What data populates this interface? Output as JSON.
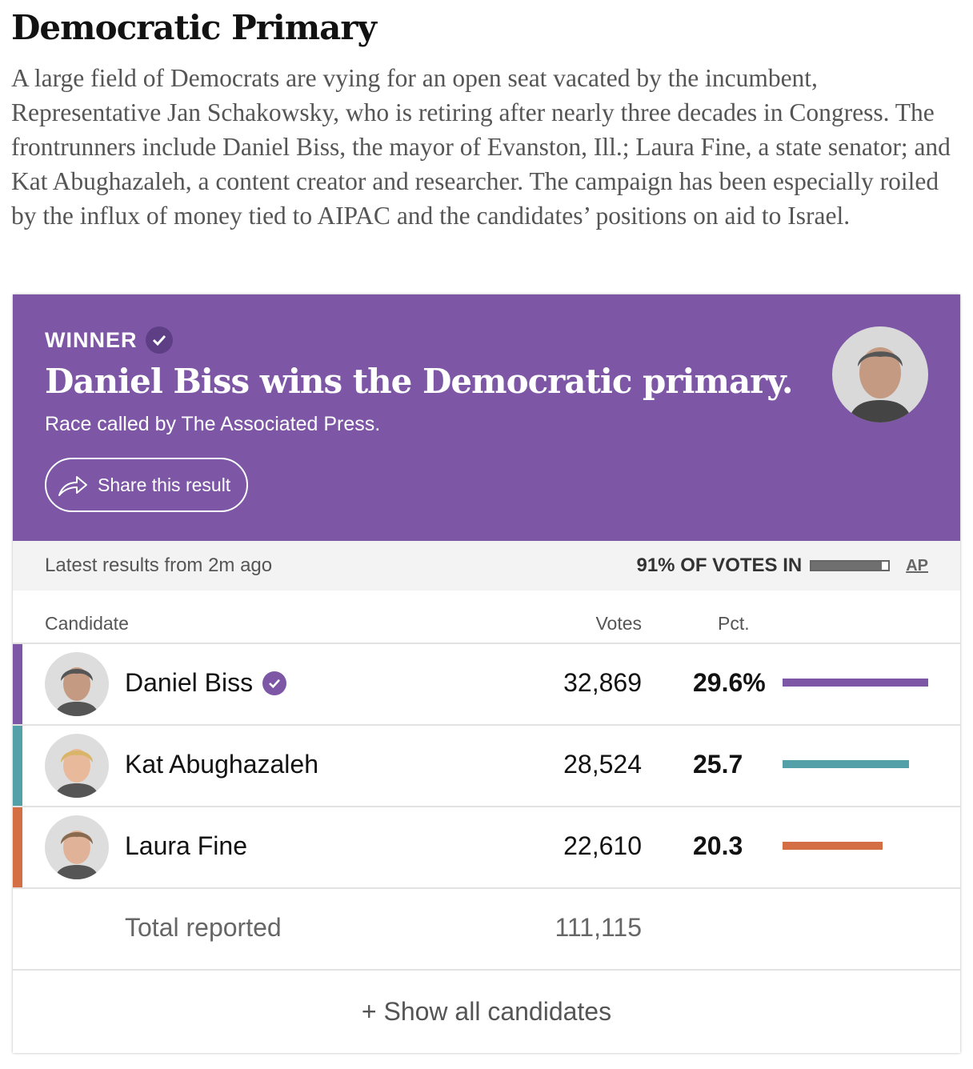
{
  "title": "Democratic Primary",
  "intro": "A large field of Democrats are vying for an open seat vacated by the incumbent, Representative Jan Schakowsky, who is retiring after nearly three decades in Congress. The frontrunners include Daniel Biss, the mayor of Evanston, Ill.; Laura Fine, a state senator; and Kat Abughazaleh, a content creator and researcher. The campaign has been especially roiled by the influx of money tied to AIPAC and the candidates’ positions on aid to Israel.",
  "hero": {
    "label": "WINNER",
    "headline": "Daniel Biss wins the Democratic primary.",
    "called": "Race called by The Associated Press.",
    "share": "Share this result",
    "color": "#7d57a5"
  },
  "status": {
    "latest": "Latest results from 2m ago",
    "votes_in": "91% OF VOTES IN",
    "votes_in_pct": 91,
    "source": "AP"
  },
  "table": {
    "headers": {
      "candidate": "Candidate",
      "votes": "Votes",
      "pct": "Pct."
    },
    "rows": [
      {
        "name": "Daniel Biss",
        "votes": "32,869",
        "pct": "29.6%",
        "pct_value": 29.6,
        "color": "#7d57a5",
        "winner": true
      },
      {
        "name": "Kat Abughazaleh",
        "votes": "28,524",
        "pct": "25.7",
        "pct_value": 25.7,
        "color": "#53a0a8"
      },
      {
        "name": "Laura Fine",
        "votes": "22,610",
        "pct": "20.3",
        "pct_value": 20.3,
        "color": "#d46f45"
      }
    ],
    "total_label": "Total reported",
    "total": "111,115"
  },
  "show_all": "+ Show all candidates"
}
